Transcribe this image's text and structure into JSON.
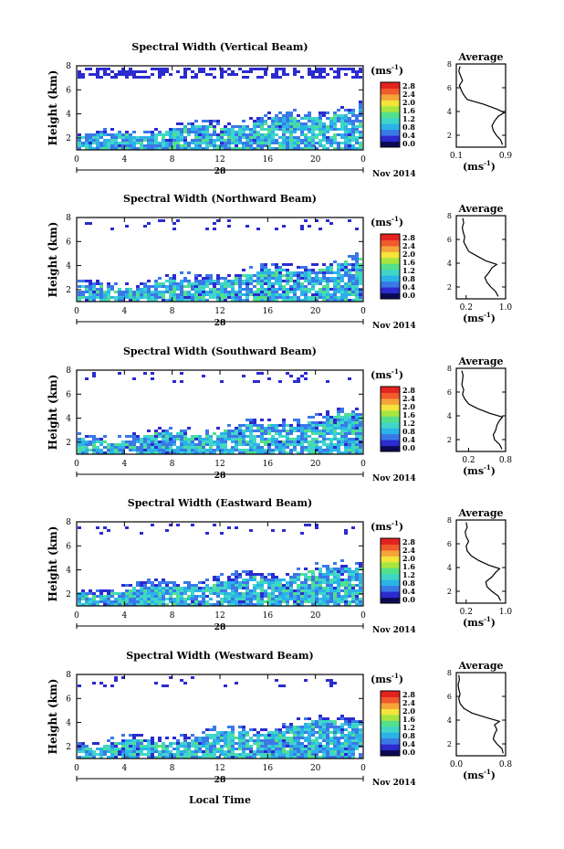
{
  "figure": {
    "bottom_xlabel": "Local Time"
  },
  "colorbar": {
    "unit_label": "(ms",
    "unit_exponent": "-1",
    "unit_close": ")",
    "ticks": [
      "0.0",
      "0.4",
      "0.8",
      "1.2",
      "1.6",
      "2.0",
      "2.4",
      "2.8"
    ],
    "colors": [
      "#0b0b55",
      "#2b2bd0",
      "#3a78e8",
      "#2bb3e8",
      "#3fd6c8",
      "#52e08a",
      "#a5e640",
      "#f4e43c",
      "#f6a33a",
      "#f05a2c",
      "#e4231f"
    ]
  },
  "chart_data": [
    {
      "type": "heatmap",
      "title": "Spectral Width (Vertical Beam)",
      "ylabel": "Height (km)",
      "yticks": [
        "2",
        "4",
        "6",
        "8"
      ],
      "ylim": [
        1,
        8
      ],
      "xticks": [
        "0",
        "4",
        "8",
        "12",
        "16",
        "20",
        "0"
      ],
      "xlim": [
        0,
        24
      ],
      "date_day": "28",
      "date_month": "Nov 2014",
      "profile": {
        "title": "Average",
        "xticks": [
          "0.1",
          "0.9"
        ],
        "xlim": [
          0.1,
          0.9
        ],
        "xlabel": "(ms",
        "xlabel_exp": "-1",
        "xlabel_close": ")",
        "yticks": [
          "2",
          "4",
          "6",
          "8"
        ],
        "ylim": [
          1,
          8
        ],
        "heights": [
          1.2,
          1.6,
          2.0,
          2.4,
          2.8,
          3.2,
          3.6,
          3.9,
          4.2,
          4.6,
          5.0,
          5.4,
          5.8,
          6.2,
          6.6,
          7.0,
          7.4,
          7.8
        ],
        "values": [
          0.85,
          0.82,
          0.75,
          0.7,
          0.68,
          0.72,
          0.78,
          0.88,
          0.76,
          0.55,
          0.28,
          0.22,
          0.18,
          0.15,
          0.2,
          0.17,
          0.14,
          0.16
        ]
      }
    },
    {
      "type": "heatmap",
      "title": "Spectral Width (Northward Beam)",
      "ylabel": "Height (km)",
      "yticks": [
        "2",
        "4",
        "6",
        "8"
      ],
      "ylim": [
        1,
        8
      ],
      "xticks": [
        "0",
        "4",
        "8",
        "12",
        "16",
        "20",
        "0"
      ],
      "xlim": [
        0,
        24
      ],
      "date_day": "28",
      "date_month": "Nov 2014",
      "profile": {
        "title": "Average",
        "xticks": [
          "0.2",
          "1.0"
        ],
        "xlim": [
          0.0,
          1.0
        ],
        "xlabel": "(ms",
        "xlabel_exp": "-1",
        "xlabel_close": ")",
        "yticks": [
          "2",
          "4",
          "6",
          "8"
        ],
        "ylim": [
          1,
          8
        ],
        "heights": [
          1.2,
          1.6,
          2.0,
          2.4,
          2.8,
          3.2,
          3.6,
          3.9,
          4.2,
          4.6,
          5.0,
          5.4,
          5.8,
          6.2,
          6.6,
          7.0,
          7.4,
          7.8
        ],
        "values": [
          0.85,
          0.8,
          0.7,
          0.62,
          0.58,
          0.66,
          0.72,
          0.82,
          0.6,
          0.42,
          0.25,
          0.2,
          0.15,
          0.17,
          0.14,
          0.12,
          0.15,
          0.13
        ]
      }
    },
    {
      "type": "heatmap",
      "title": "Spectral Width (Southward Beam)",
      "ylabel": "Height (km)",
      "yticks": [
        "2",
        "4",
        "6",
        "8"
      ],
      "ylim": [
        1,
        8
      ],
      "xticks": [
        "0",
        "4",
        "8",
        "12",
        "16",
        "20",
        "0"
      ],
      "xlim": [
        0,
        24
      ],
      "date_day": "28",
      "date_month": "Nov 2014",
      "profile": {
        "title": "Average",
        "xticks": [
          "0.2",
          "0.8"
        ],
        "xlim": [
          0.0,
          0.8
        ],
        "xlabel": "(ms",
        "xlabel_exp": "-1",
        "xlabel_close": ")",
        "yticks": [
          "2",
          "4",
          "6",
          "8"
        ],
        "ylim": [
          1,
          8
        ],
        "heights": [
          1.2,
          1.6,
          2.0,
          2.4,
          2.8,
          3.2,
          3.6,
          3.9,
          4.2,
          4.6,
          5.0,
          5.4,
          5.8,
          6.2,
          6.6,
          7.0,
          7.4,
          7.8
        ],
        "values": [
          0.74,
          0.7,
          0.62,
          0.6,
          0.64,
          0.66,
          0.7,
          0.75,
          0.55,
          0.35,
          0.2,
          0.14,
          0.1,
          0.12,
          0.09,
          0.1,
          0.11,
          0.09
        ]
      }
    },
    {
      "type": "heatmap",
      "title": "Spectral Width (Eastward Beam)",
      "ylabel": "Height (km)",
      "yticks": [
        "2",
        "4",
        "6",
        "8"
      ],
      "ylim": [
        1,
        8
      ],
      "xticks": [
        "0",
        "4",
        "8",
        "12",
        "16",
        "20",
        "0"
      ],
      "xlim": [
        0,
        24
      ],
      "date_day": "28",
      "date_month": "Nov 2014",
      "profile": {
        "title": "Average",
        "xticks": [
          "0.2",
          "1.0"
        ],
        "xlim": [
          0.0,
          1.0
        ],
        "xlabel": "(ms",
        "xlabel_exp": "-1",
        "xlabel_close": ")",
        "yticks": [
          "2",
          "4",
          "6",
          "8"
        ],
        "ylim": [
          1,
          8
        ],
        "heights": [
          1.2,
          1.6,
          2.0,
          2.4,
          2.8,
          3.2,
          3.6,
          3.9,
          4.2,
          4.6,
          5.0,
          5.4,
          5.8,
          6.2,
          6.6,
          7.0,
          7.4,
          7.8
        ],
        "values": [
          0.9,
          0.85,
          0.72,
          0.62,
          0.6,
          0.72,
          0.8,
          0.88,
          0.66,
          0.45,
          0.3,
          0.22,
          0.2,
          0.25,
          0.2,
          0.18,
          0.22,
          0.2
        ]
      }
    },
    {
      "type": "heatmap",
      "title": "Spectral Width (Westward Beam)",
      "ylabel": "Height (km)",
      "yticks": [
        "2",
        "4",
        "6",
        "8"
      ],
      "ylim": [
        1,
        8
      ],
      "xticks": [
        "0",
        "4",
        "8",
        "12",
        "16",
        "20",
        "0"
      ],
      "xlim": [
        0,
        24
      ],
      "date_day": "28",
      "date_month": "Nov 2014",
      "profile": {
        "title": "Average",
        "xticks": [
          "0.0",
          "0.8"
        ],
        "xlim": [
          0.0,
          0.8
        ],
        "xlabel": "(ms",
        "xlabel_exp": "-1",
        "xlabel_close": ")",
        "yticks": [
          "2",
          "4",
          "6",
          "8"
        ],
        "ylim": [
          1,
          8
        ],
        "heights": [
          1.2,
          1.6,
          2.0,
          2.4,
          2.8,
          3.2,
          3.6,
          3.9,
          4.2,
          4.6,
          5.0,
          5.4,
          5.8,
          6.2,
          6.6,
          7.0,
          7.4,
          7.8
        ],
        "values": [
          0.76,
          0.74,
          0.66,
          0.6,
          0.62,
          0.66,
          0.62,
          0.7,
          0.5,
          0.25,
          0.12,
          0.06,
          0.04,
          0.06,
          0.04,
          0.03,
          0.05,
          0.04
        ]
      }
    }
  ]
}
